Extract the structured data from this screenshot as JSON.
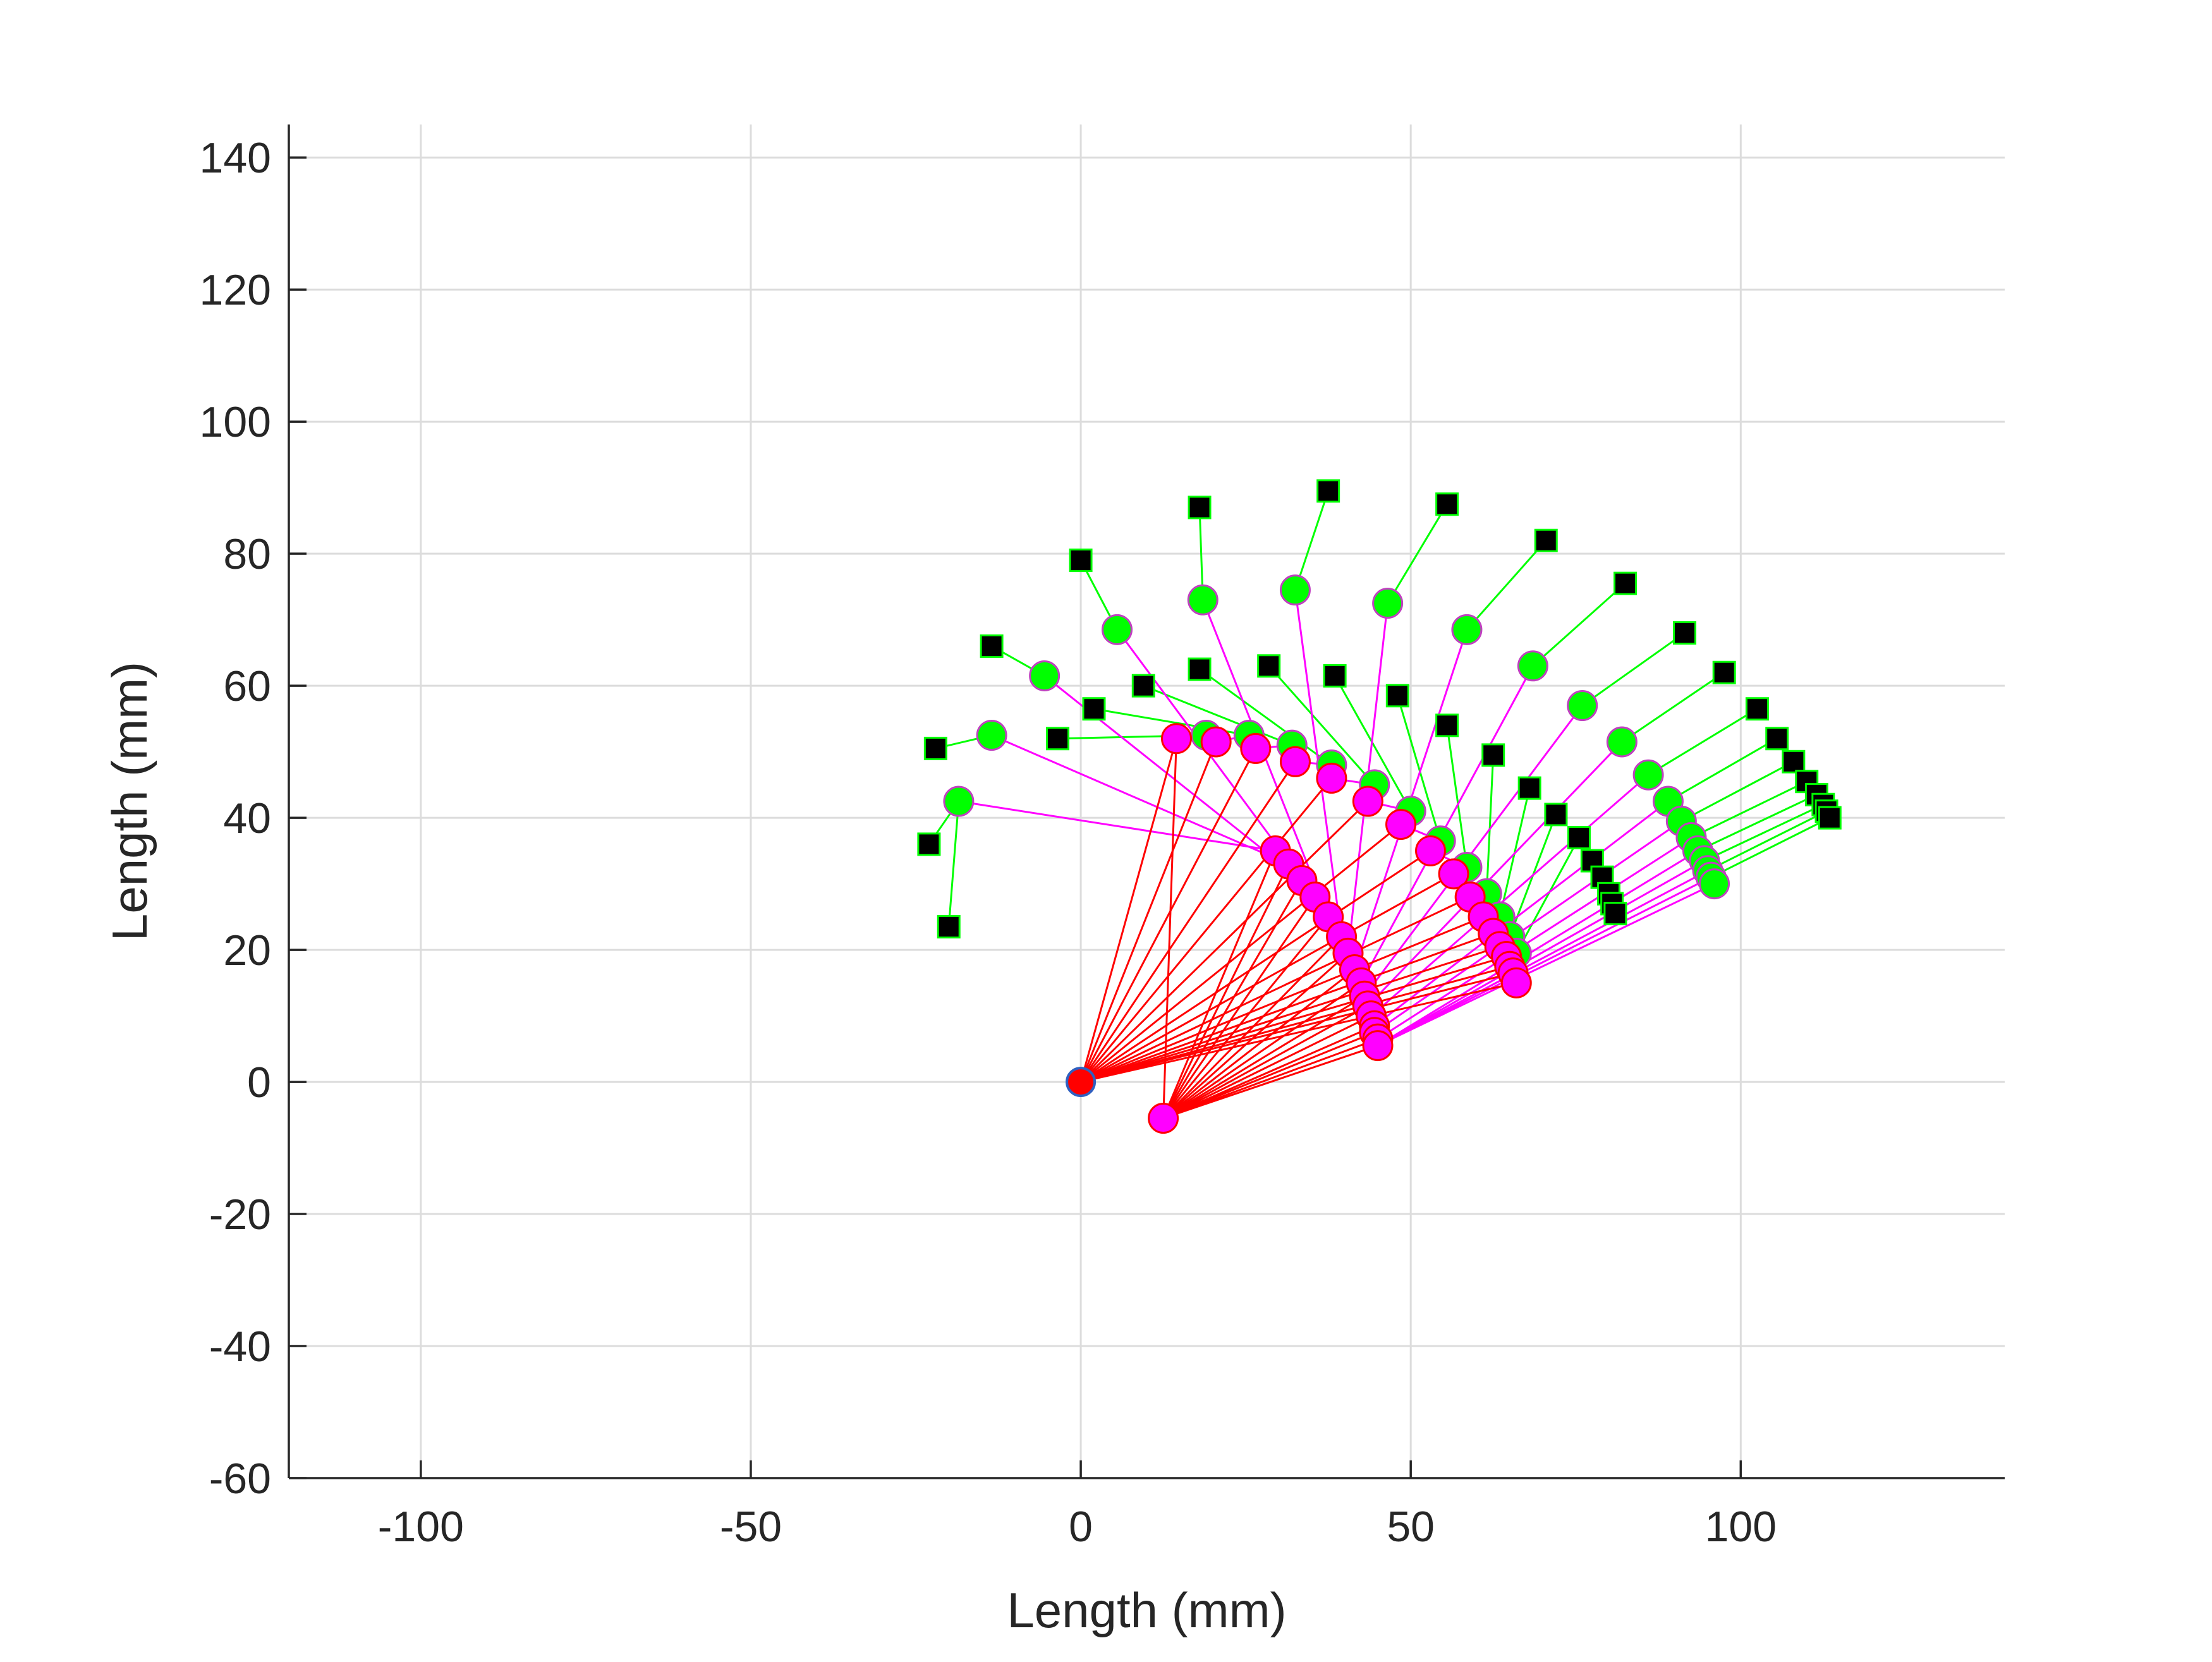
{
  "chart_data": {
    "type": "scatter",
    "xlabel": "Length (mm)",
    "ylabel": "Length (mm)",
    "xlim": [
      -120,
      140
    ],
    "ylim": [
      -60,
      145
    ],
    "xticks": [
      -100,
      -50,
      0,
      50,
      100
    ],
    "yticks": [
      -60,
      -40,
      -20,
      0,
      20,
      40,
      60,
      80,
      100,
      120,
      140
    ],
    "grid": true,
    "colors": {
      "link1": "#ff0000",
      "link2": "#ff00ff",
      "link3": "#00ff00",
      "joint1_fill": "#ff00ff",
      "joint2_fill": "#00ff00",
      "joint2_edge": "#c040c0",
      "tip_fill": "#000000",
      "tip_edge": "#00ff00",
      "base_fill": "#ff0000",
      "base_edge": "#3060c0"
    },
    "base": [
      0,
      0
    ],
    "base2": [
      12.5,
      -5.5
    ],
    "joint1": [
      [
        14.5,
        52
      ],
      [
        20.5,
        51.5
      ],
      [
        26.5,
        50.5
      ],
      [
        32.5,
        48.5
      ],
      [
        38,
        46
      ],
      [
        43.5,
        42.5
      ],
      [
        48.5,
        39
      ],
      [
        53,
        35
      ],
      [
        56.5,
        31.5
      ],
      [
        59,
        28
      ],
      [
        61,
        25
      ],
      [
        62.5,
        22.5
      ],
      [
        63.5,
        20.5
      ],
      [
        64.5,
        19
      ],
      [
        65,
        17.5
      ],
      [
        65.5,
        16.5
      ],
      [
        66,
        15
      ],
      [
        29.5,
        35
      ],
      [
        31.5,
        33
      ],
      [
        33.5,
        30.5
      ],
      [
        35.5,
        28
      ],
      [
        37.5,
        25
      ],
      [
        39.5,
        22
      ],
      [
        40.5,
        19.5
      ],
      [
        41.5,
        17
      ],
      [
        42.5,
        15
      ],
      [
        43,
        13
      ],
      [
        43.5,
        11.5
      ],
      [
        44,
        10
      ],
      [
        44.5,
        8.5
      ],
      [
        44.5,
        7.5
      ],
      [
        45,
        6.5
      ],
      [
        45,
        5.5
      ]
    ],
    "joint2": [
      [
        -18.5,
        42.5
      ],
      [
        -13.5,
        52.5
      ],
      [
        -5.5,
        61.5
      ],
      [
        5.5,
        68.5
      ],
      [
        18.5,
        73
      ],
      [
        32.5,
        74.5
      ],
      [
        46.5,
        72.5
      ],
      [
        58.5,
        68.5
      ],
      [
        68.5,
        63
      ],
      [
        76,
        57
      ],
      [
        82,
        51.5
      ],
      [
        86,
        46.5
      ],
      [
        89,
        42.5
      ],
      [
        91,
        39.5
      ],
      [
        92.5,
        37
      ],
      [
        93.5,
        35
      ],
      [
        94.5,
        33.5
      ],
      [
        95,
        32
      ],
      [
        95.5,
        31
      ],
      [
        96,
        30
      ],
      [
        19,
        52.5
      ],
      [
        25.5,
        52.5
      ],
      [
        32,
        51
      ],
      [
        38,
        48
      ],
      [
        44.5,
        45
      ],
      [
        50,
        41
      ],
      [
        54.5,
        36.5
      ],
      [
        58.5,
        32.5
      ],
      [
        61.5,
        28.5
      ],
      [
        63.5,
        25
      ],
      [
        65,
        22
      ],
      [
        66,
        19.5
      ]
    ],
    "tip": [
      [
        -23,
        36
      ],
      [
        -22,
        50.5
      ],
      [
        -13.5,
        66
      ],
      [
        0,
        79
      ],
      [
        18,
        87
      ],
      [
        37.5,
        89.5
      ],
      [
        55.5,
        87.5
      ],
      [
        70.5,
        82
      ],
      [
        82.5,
        75.5
      ],
      [
        91.5,
        68
      ],
      [
        97.5,
        62
      ],
      [
        102.5,
        56.5
      ],
      [
        105.5,
        52
      ],
      [
        108,
        48.5
      ],
      [
        110,
        45.5
      ],
      [
        111.5,
        43.5
      ],
      [
        112.5,
        42
      ],
      [
        113,
        41
      ],
      [
        113.5,
        40
      ],
      [
        -20,
        23.5
      ],
      [
        -3.5,
        52
      ],
      [
        2,
        56.5
      ],
      [
        9.5,
        60
      ],
      [
        18,
        62.5
      ],
      [
        28.5,
        63
      ],
      [
        38.5,
        61.5
      ],
      [
        48,
        58.5
      ],
      [
        55.5,
        54
      ],
      [
        62.5,
        49.5
      ],
      [
        68,
        44.5
      ],
      [
        72,
        40.5
      ],
      [
        75.5,
        37
      ],
      [
        77.5,
        33.5
      ],
      [
        79,
        31
      ],
      [
        80,
        28.5
      ],
      [
        80.5,
        27
      ],
      [
        81,
        25.5
      ]
    ],
    "tip_links": [
      [
        0,
        0
      ],
      [
        1,
        1
      ],
      [
        2,
        2
      ],
      [
        3,
        3
      ],
      [
        4,
        4
      ],
      [
        5,
        5
      ],
      [
        6,
        6
      ],
      [
        7,
        7
      ],
      [
        8,
        8
      ],
      [
        9,
        9
      ],
      [
        10,
        10
      ],
      [
        11,
        11
      ],
      [
        12,
        12
      ],
      [
        13,
        13
      ],
      [
        14,
        14
      ],
      [
        15,
        15
      ],
      [
        16,
        16
      ],
      [
        17,
        17
      ],
      [
        18,
        18
      ],
      [
        0,
        19
      ],
      [
        20,
        20
      ],
      [
        21,
        21
      ],
      [
        22,
        22
      ],
      [
        23,
        23
      ],
      [
        24,
        24
      ],
      [
        25,
        25
      ],
      [
        26,
        26
      ],
      [
        27,
        27
      ],
      [
        28,
        28
      ],
      [
        29,
        29
      ],
      [
        30,
        30
      ],
      [
        31,
        31
      ]
    ],
    "link1_links": [
      [
        0,
        0
      ],
      [
        0,
        1
      ],
      [
        0,
        2
      ],
      [
        0,
        3
      ],
      [
        0,
        4
      ],
      [
        0,
        5
      ],
      [
        0,
        6
      ],
      [
        0,
        7
      ],
      [
        0,
        8
      ],
      [
        0,
        9
      ],
      [
        0,
        10
      ],
      [
        0,
        11
      ],
      [
        0,
        12
      ],
      [
        0,
        13
      ],
      [
        0,
        14
      ],
      [
        0,
        15
      ],
      [
        0,
        16
      ],
      [
        1,
        0
      ],
      [
        1,
        17
      ],
      [
        1,
        18
      ],
      [
        1,
        19
      ],
      [
        1,
        20
      ],
      [
        1,
        21
      ],
      [
        1,
        22
      ],
      [
        1,
        23
      ],
      [
        1,
        24
      ],
      [
        1,
        25
      ],
      [
        1,
        26
      ],
      [
        1,
        27
      ],
      [
        1,
        28
      ],
      [
        1,
        29
      ],
      [
        1,
        30
      ],
      [
        1,
        31
      ],
      [
        1,
        32
      ]
    ],
    "link2_links": [
      [
        17,
        0
      ],
      [
        18,
        1
      ],
      [
        19,
        2
      ],
      [
        20,
        3
      ],
      [
        21,
        4
      ],
      [
        22,
        5
      ],
      [
        23,
        6
      ],
      [
        24,
        7
      ],
      [
        25,
        8
      ],
      [
        26,
        9
      ],
      [
        27,
        10
      ],
      [
        28,
        11
      ],
      [
        29,
        12
      ],
      [
        30,
        13
      ],
      [
        31,
        14
      ],
      [
        32,
        15
      ],
      [
        32,
        16
      ],
      [
        32,
        17
      ],
      [
        32,
        18
      ],
      [
        32,
        19
      ],
      [
        0,
        20
      ],
      [
        1,
        21
      ],
      [
        2,
        22
      ],
      [
        3,
        23
      ],
      [
        4,
        24
      ],
      [
        5,
        25
      ],
      [
        6,
        26
      ],
      [
        7,
        27
      ],
      [
        8,
        28
      ],
      [
        9,
        29
      ],
      [
        10,
        30
      ],
      [
        11,
        31
      ]
    ]
  }
}
